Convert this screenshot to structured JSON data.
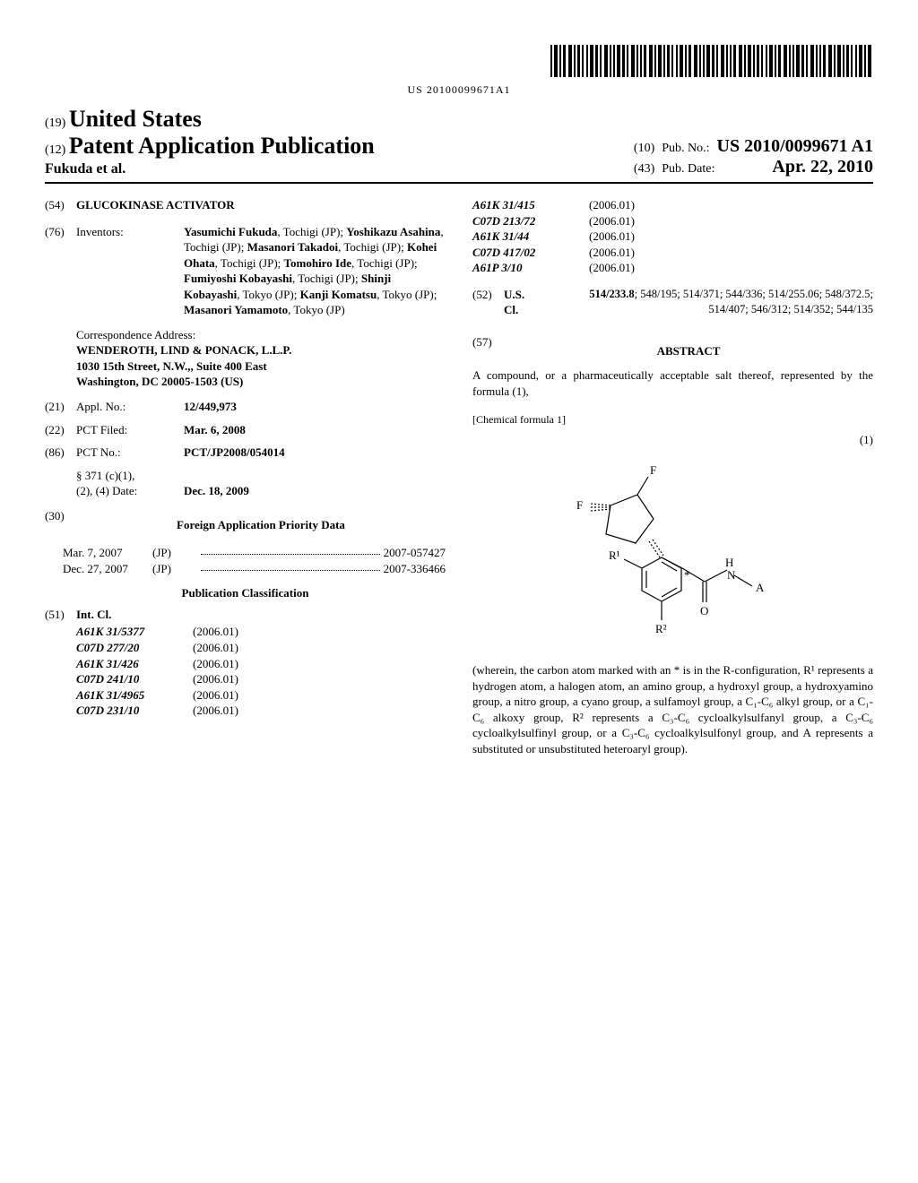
{
  "barcode_text": "US 20100099671A1",
  "header": {
    "country_code": "(19)",
    "country": "United States",
    "pub_code": "(12)",
    "pub_type": "Patent Application Publication",
    "authors": "Fukuda et al.",
    "pub_no_code": "(10)",
    "pub_no_label": "Pub. No.:",
    "pub_no": "US 2010/0099671 A1",
    "pub_date_code": "(43)",
    "pub_date_label": "Pub. Date:",
    "pub_date": "Apr. 22, 2010"
  },
  "title": {
    "code": "(54)",
    "value": "GLUCOKINASE ACTIVATOR"
  },
  "inventors": {
    "code": "(76)",
    "label": "Inventors:",
    "list": [
      {
        "name": "Yasumichi Fukuda",
        "loc": ", Tochigi (JP); "
      },
      {
        "name": "Yoshikazu Asahina",
        "loc": ", Tochigi (JP); "
      },
      {
        "name": "Masanori Takadoi",
        "loc": ", Tochigi (JP); "
      },
      {
        "name": "Kohei Ohata",
        "loc": ", Tochigi (JP); "
      },
      {
        "name": "Tomohiro Ide",
        "loc": ", Tochigi (JP); "
      },
      {
        "name": "Fumiyoshi Kobayashi",
        "loc": ", Tochigi (JP); "
      },
      {
        "name": "Shinji Kobayashi",
        "loc": ", Tokyo (JP); "
      },
      {
        "name": "Kanji Komatsu",
        "loc": ", Tokyo (JP); "
      },
      {
        "name": "Masanori Yamamoto",
        "loc": ", Tokyo (JP)"
      }
    ]
  },
  "correspondence": {
    "label": "Correspondence Address:",
    "line1": "WENDEROTH, LIND & PONACK, L.L.P.",
    "line2": "1030 15th Street, N.W.,, Suite 400 East",
    "line3": "Washington, DC 20005-1503 (US)"
  },
  "appl_no": {
    "code": "(21)",
    "label": "Appl. No.:",
    "value": "12/449,973"
  },
  "pct_filed": {
    "code": "(22)",
    "label": "PCT Filed:",
    "value": "Mar. 6, 2008"
  },
  "pct_no": {
    "code": "(86)",
    "label": "PCT No.:",
    "value": "PCT/JP2008/054014"
  },
  "s371": {
    "line1": "§ 371 (c)(1),",
    "line2_label": "(2), (4) Date:",
    "line2_value": "Dec. 18, 2009"
  },
  "foreign_priority": {
    "code": "(30)",
    "heading": "Foreign Application Priority Data",
    "rows": [
      {
        "date": "Mar. 7, 2007",
        "country": "(JP)",
        "num": "2007-057427"
      },
      {
        "date": "Dec. 27, 2007",
        "country": "(JP)",
        "num": "2007-336466"
      }
    ]
  },
  "pub_class_heading": "Publication Classification",
  "int_cl": {
    "code": "(51)",
    "label": "Int. Cl.",
    "rows": [
      {
        "code": "A61K 31/5377",
        "year": "(2006.01)"
      },
      {
        "code": "C07D 277/20",
        "year": "(2006.01)"
      },
      {
        "code": "A61K 31/426",
        "year": "(2006.01)"
      },
      {
        "code": "C07D 241/10",
        "year": "(2006.01)"
      },
      {
        "code": "A61K 31/4965",
        "year": "(2006.01)"
      },
      {
        "code": "C07D 231/10",
        "year": "(2006.01)"
      }
    ]
  },
  "int_cl_right": {
    "rows": [
      {
        "code": "A61K 31/415",
        "year": "(2006.01)"
      },
      {
        "code": "C07D 213/72",
        "year": "(2006.01)"
      },
      {
        "code": "A61K 31/44",
        "year": "(2006.01)"
      },
      {
        "code": "C07D 417/02",
        "year": "(2006.01)"
      },
      {
        "code": "A61P 3/10",
        "year": "(2006.01)"
      }
    ]
  },
  "us_cl": {
    "code": "(52)",
    "label": "U.S. Cl.",
    "primary": "514/233.8",
    "rest": "; 548/195; 514/371; 544/336; 514/255.06; 548/372.5; 514/407; 546/312; 514/352; 544/135"
  },
  "abstract": {
    "code": "(57)",
    "heading": "ABSTRACT",
    "intro": "A compound, or a pharmaceutically acceptable salt thereof, represented by the formula (1),",
    "chem_label": "[Chemical formula 1]",
    "formula_num": "(1)",
    "post": "(wherein, the carbon atom marked with an * is in the R-configuration, R¹ represents a hydrogen atom, a halogen atom, an amino group, a hydroxyl group, a hydroxyamino group, a nitro group, a cyano group, a sulfamoyl group, a C₁-C₆ alkyl group, or a C₁-C₆ alkoxy group, R² represents a C₃-C₆ cycloalkylsulfanyl group, a C₃-C₆ cycloalkylsulfinyl group, or a C₃-C₆ cycloalkylsulfonyl group, and A represents a substituted or unsubstituted heteroaryl group)."
  },
  "chem_structure": {
    "type": "diagram",
    "labels": {
      "F": "F",
      "Fprime": "F",
      "R1": "R¹",
      "R2": "R²",
      "H": "H",
      "N": "N",
      "A": "A",
      "O": "O",
      "star": "*"
    },
    "stroke_color": "#000000",
    "stroke_width": 1
  }
}
